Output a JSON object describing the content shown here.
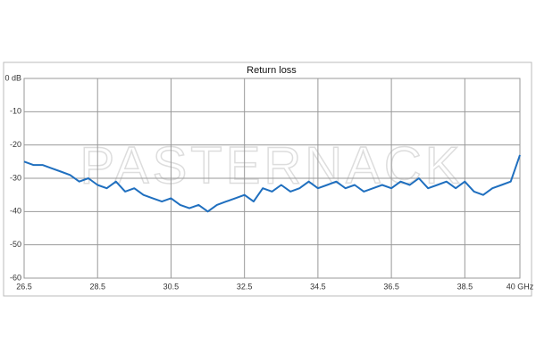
{
  "chart_data": {
    "type": "line",
    "title": "Return loss",
    "watermark": "PASTERNACK",
    "x": [
      26.5,
      26.75,
      27,
      27.25,
      27.5,
      27.75,
      28,
      28.25,
      28.5,
      28.75,
      29,
      29.25,
      29.5,
      29.75,
      30,
      30.25,
      30.5,
      30.75,
      31,
      31.25,
      31.5,
      31.75,
      32,
      32.25,
      32.5,
      32.75,
      33,
      33.25,
      33.5,
      33.75,
      34,
      34.25,
      34.5,
      34.75,
      35,
      35.25,
      35.5,
      35.75,
      36,
      36.25,
      36.5,
      36.75,
      37,
      37.25,
      37.5,
      37.75,
      38,
      38.25,
      38.5,
      38.75,
      39,
      39.25,
      39.5,
      39.75,
      40
    ],
    "series": [
      {
        "color": "#1f6fbf",
        "values": [
          -25,
          -26,
          -26,
          -27,
          -28,
          -29,
          -31,
          -30,
          -32,
          -33,
          -31,
          -34,
          -33,
          -35,
          -36,
          -37,
          -36,
          -38,
          -39,
          -38,
          -40,
          -38,
          -37,
          -36,
          -35,
          -37,
          -33,
          -34,
          -32,
          -34,
          -33,
          -31,
          -33,
          -32,
          -31,
          -33,
          -32,
          -34,
          -33,
          -32,
          -33,
          -31,
          -32,
          -30,
          -33,
          -32,
          -31,
          -33,
          -31,
          -34,
          -35,
          -33,
          -32,
          -31,
          -23
        ]
      }
    ],
    "xlim": [
      26.5,
      40
    ],
    "xticks": [
      26.5,
      28.5,
      30.5,
      32.5,
      34.5,
      36.5,
      38.5,
      {
        "value": 40,
        "label": "40 GHz"
      }
    ],
    "ylim": [
      -60,
      0
    ],
    "yticks": [
      {
        "value": 0,
        "label": "0 dB"
      },
      -10,
      -20,
      -30,
      -40,
      -50,
      -60
    ],
    "grid": true
  }
}
